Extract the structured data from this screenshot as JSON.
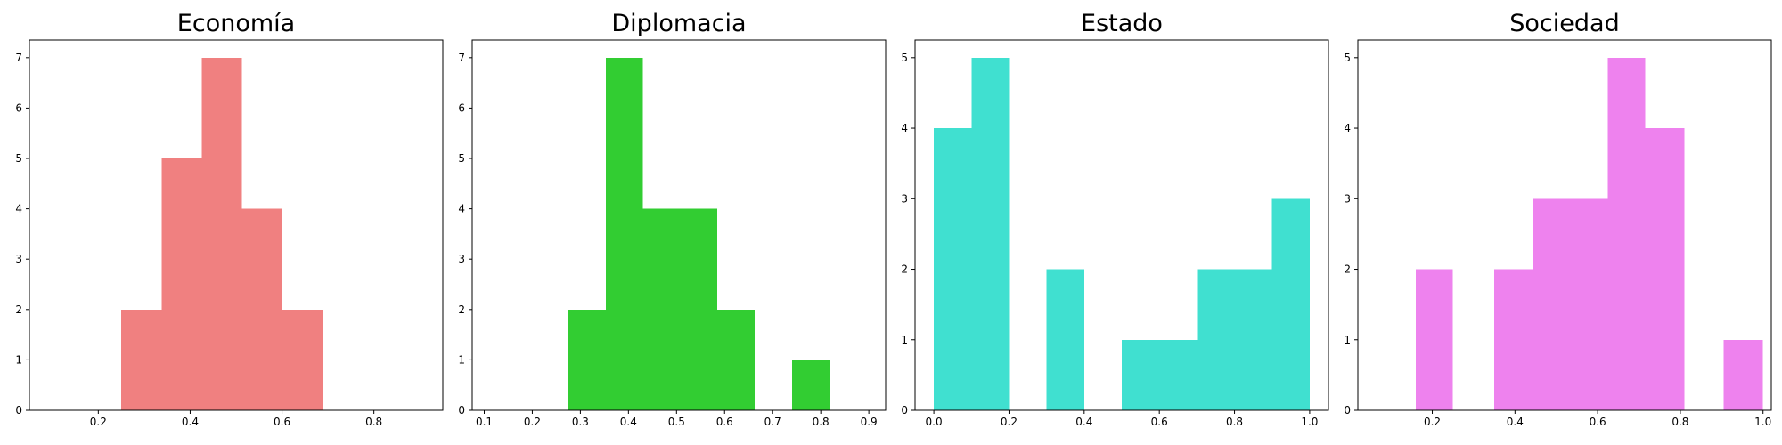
{
  "chart_data": [
    {
      "type": "bar",
      "title": "Economía",
      "color": "#f08080",
      "xlim": [
        0.05,
        0.95
      ],
      "ylim": [
        0,
        7.35
      ],
      "xticks": [
        0.2,
        0.4,
        0.6,
        0.8
      ],
      "xtick_labels": [
        "0.2",
        "0.4",
        "0.6",
        "0.8"
      ],
      "yticks": [
        0,
        1,
        2,
        3,
        4,
        5,
        6,
        7
      ],
      "ytick_labels": [
        "0",
        "1",
        "2",
        "3",
        "4",
        "5",
        "6",
        "7"
      ],
      "bins": [
        {
          "x0": 0.25,
          "x1": 0.338,
          "count": 2
        },
        {
          "x0": 0.338,
          "x1": 0.425,
          "count": 5
        },
        {
          "x0": 0.425,
          "x1": 0.513,
          "count": 7
        },
        {
          "x0": 0.513,
          "x1": 0.6,
          "count": 4
        },
        {
          "x0": 0.6,
          "x1": 0.688,
          "count": 2
        }
      ]
    },
    {
      "type": "bar",
      "title": "Diplomacia",
      "color": "#32cd32",
      "xlim": [
        0.075,
        0.935
      ],
      "ylim": [
        0,
        7.35
      ],
      "xticks": [
        0.1,
        0.2,
        0.3,
        0.4,
        0.5,
        0.6,
        0.7,
        0.8,
        0.9
      ],
      "xtick_labels": [
        "0.1",
        "0.2",
        "0.3",
        "0.4",
        "0.5",
        "0.6",
        "0.7",
        "0.8",
        "0.9"
      ],
      "yticks": [
        0,
        1,
        2,
        3,
        4,
        5,
        6,
        7
      ],
      "ytick_labels": [
        "0",
        "1",
        "2",
        "3",
        "4",
        "5",
        "6",
        "7"
      ],
      "bins": [
        {
          "x0": 0.275,
          "x1": 0.353,
          "count": 2
        },
        {
          "x0": 0.353,
          "x1": 0.43,
          "count": 7
        },
        {
          "x0": 0.43,
          "x1": 0.508,
          "count": 4
        },
        {
          "x0": 0.508,
          "x1": 0.585,
          "count": 4
        },
        {
          "x0": 0.585,
          "x1": 0.663,
          "count": 2
        },
        {
          "x0": 0.74,
          "x1": 0.818,
          "count": 1
        }
      ]
    },
    {
      "type": "bar",
      "title": "Estado",
      "color": "#40e0d0",
      "xlim": [
        -0.05,
        1.05
      ],
      "ylim": [
        0,
        5.25
      ],
      "xticks": [
        0.0,
        0.2,
        0.4,
        0.6,
        0.8,
        1.0
      ],
      "xtick_labels": [
        "0.0",
        "0.2",
        "0.4",
        "0.6",
        "0.8",
        "1.0"
      ],
      "yticks": [
        0,
        1,
        2,
        3,
        4,
        5
      ],
      "ytick_labels": [
        "0",
        "1",
        "2",
        "3",
        "4",
        "5"
      ],
      "bins": [
        {
          "x0": 0.0,
          "x1": 0.1,
          "count": 4
        },
        {
          "x0": 0.1,
          "x1": 0.2,
          "count": 5
        },
        {
          "x0": 0.3,
          "x1": 0.4,
          "count": 2
        },
        {
          "x0": 0.5,
          "x1": 0.6,
          "count": 1
        },
        {
          "x0": 0.6,
          "x1": 0.7,
          "count": 1
        },
        {
          "x0": 0.7,
          "x1": 0.8,
          "count": 2
        },
        {
          "x0": 0.8,
          "x1": 0.9,
          "count": 2
        },
        {
          "x0": 0.9,
          "x1": 1.0,
          "count": 3
        }
      ]
    },
    {
      "type": "bar",
      "title": "Sociedad",
      "color": "#ee82ee",
      "xlim": [
        0.02,
        1.02
      ],
      "ylim": [
        0,
        5.25
      ],
      "xticks": [
        0.2,
        0.4,
        0.6,
        0.8,
        1.0
      ],
      "xtick_labels": [
        "0.2",
        "0.4",
        "0.6",
        "0.8",
        "1.0"
      ],
      "yticks": [
        0,
        1,
        2,
        3,
        4,
        5
      ],
      "ytick_labels": [
        "0",
        "1",
        "2",
        "3",
        "4",
        "5"
      ],
      "bins": [
        {
          "x0": 0.16,
          "x1": 0.25,
          "count": 2
        },
        {
          "x0": 0.35,
          "x1": 0.445,
          "count": 2
        },
        {
          "x0": 0.445,
          "x1": 0.54,
          "count": 3
        },
        {
          "x0": 0.54,
          "x1": 0.625,
          "count": 3
        },
        {
          "x0": 0.625,
          "x1": 0.715,
          "count": 5
        },
        {
          "x0": 0.715,
          "x1": 0.81,
          "count": 4
        },
        {
          "x0": 0.905,
          "x1": 1.0,
          "count": 1
        }
      ]
    }
  ]
}
